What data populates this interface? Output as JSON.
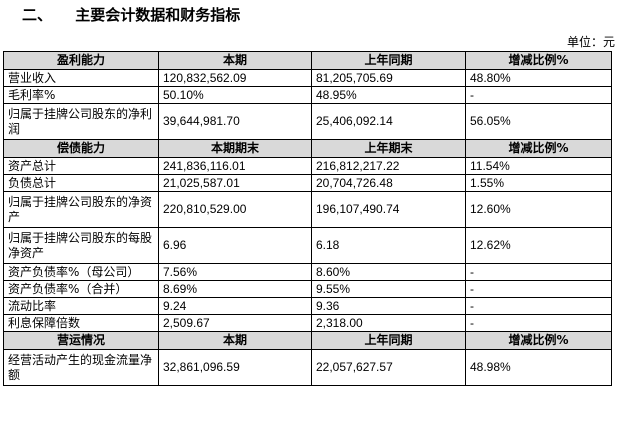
{
  "section": {
    "number": "二、",
    "title": "主要会计数据和财务指标"
  },
  "unit_label": "单位：元",
  "tables": [
    {
      "headers": [
        "盈利能力",
        "本期",
        "上年同期",
        "增减比例%"
      ],
      "rows": [
        {
          "label": "营业收入",
          "current": "120,832,562.09",
          "prior": "81,205,705.69",
          "change": "48.80%"
        },
        {
          "label": "毛利率%",
          "current": "50.10%",
          "prior": "48.95%",
          "change": "-"
        },
        {
          "label": "归属于挂牌公司股东的净利润",
          "current": "39,644,981.70",
          "prior": "25,406,092.14",
          "change": "56.05%"
        }
      ]
    },
    {
      "headers": [
        "偿债能力",
        "本期期末",
        "上年期末",
        "增减比例%"
      ],
      "rows": [
        {
          "label": "资产总计",
          "current": "241,836,116.01",
          "prior": "216,812,217.22",
          "change": "11.54%"
        },
        {
          "label": "负债总计",
          "current": "21,025,587.01",
          "prior": "20,704,726.48",
          "change": "1.55%"
        },
        {
          "label": "归属于挂牌公司股东的净资产",
          "current": "220,810,529.00",
          "prior": "196,107,490.74",
          "change": "12.60%"
        },
        {
          "label": "归属于挂牌公司股东的每股净资产",
          "current": "6.96",
          "prior": "6.18",
          "change": "12.62%"
        },
        {
          "label": "资产负债率%（母公司）",
          "current": "7.56%",
          "prior": "8.60%",
          "change": "-"
        },
        {
          "label": "资产负债率%（合并）",
          "current": "8.69%",
          "prior": "9.55%",
          "change": "-"
        },
        {
          "label": "流动比率",
          "current": "9.24",
          "prior": "9.36",
          "change": "-"
        },
        {
          "label": "利息保障倍数",
          "current": "2,509.67",
          "prior": "2,318.00",
          "change": "-"
        }
      ]
    },
    {
      "headers": [
        "营运情况",
        "本期",
        "上年同期",
        "增减比例%"
      ],
      "rows": [
        {
          "label": "经营活动产生的现金流量净额",
          "current": "32,861,096.59",
          "prior": "22,057,627.57",
          "change": "48.98%"
        }
      ]
    }
  ]
}
